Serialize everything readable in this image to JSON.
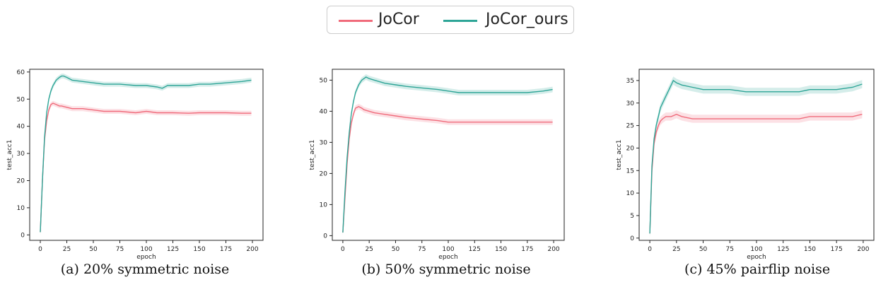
{
  "colors": {
    "JoCor": "#f06b7b",
    "JoCor_ours": "#2ea597"
  },
  "legend": {
    "items": [
      {
        "label": "JoCor"
      },
      {
        "label": "JoCor_ours"
      }
    ]
  },
  "captions": [
    "(a) 20% symmetric noise",
    "(b) 50% symmetric noise",
    "(c) 45% pairflip noise"
  ],
  "chart_data": [
    {
      "type": "line",
      "xlabel": "epoch",
      "ylabel": "test_acc1",
      "xlim": [
        -10,
        210
      ],
      "ylim": [
        -2,
        61
      ],
      "xticks": [
        0,
        25,
        50,
        75,
        100,
        125,
        150,
        175,
        200
      ],
      "yticks": [
        0,
        10,
        20,
        30,
        40,
        50,
        60
      ],
      "grid": false,
      "series": [
        {
          "name": "JoCor",
          "x": [
            0,
            2,
            4,
            6,
            8,
            10,
            12,
            15,
            18,
            20,
            25,
            30,
            40,
            50,
            60,
            75,
            90,
            100,
            110,
            125,
            140,
            150,
            160,
            175,
            190,
            199
          ],
          "y": [
            1,
            20,
            35,
            42,
            46,
            48,
            48.5,
            48,
            47.5,
            47.5,
            47,
            46.5,
            46.5,
            46,
            45.5,
            45.5,
            45,
            45.5,
            45,
            45,
            44.8,
            45,
            45,
            45,
            44.8,
            44.8
          ]
        },
        {
          "name": "JoCor_ours",
          "x": [
            0,
            2,
            4,
            6,
            8,
            10,
            12,
            15,
            18,
            20,
            22,
            25,
            30,
            40,
            50,
            60,
            75,
            90,
            100,
            110,
            115,
            120,
            125,
            140,
            150,
            160,
            175,
            190,
            199
          ],
          "y": [
            1,
            20,
            36,
            45,
            50,
            53,
            55,
            57,
            58,
            58.5,
            58.5,
            58,
            57,
            56.5,
            56,
            55.5,
            55.5,
            55,
            55,
            54.5,
            54,
            55,
            55,
            55,
            55.5,
            55.5,
            56,
            56.5,
            57
          ]
        }
      ]
    },
    {
      "type": "line",
      "xlabel": "epoch",
      "ylabel": "test_acc1",
      "xlim": [
        -10,
        210
      ],
      "ylim": [
        -1.5,
        53.5
      ],
      "xticks": [
        0,
        25,
        50,
        75,
        100,
        125,
        150,
        175,
        200
      ],
      "yticks": [
        0,
        10,
        20,
        30,
        40,
        50
      ],
      "grid": false,
      "series": [
        {
          "name": "JoCor",
          "x": [
            0,
            2,
            4,
            6,
            8,
            10,
            12,
            15,
            18,
            20,
            25,
            30,
            40,
            50,
            60,
            75,
            90,
            100,
            110,
            125,
            140,
            150,
            160,
            175,
            190,
            199
          ],
          "y": [
            1,
            12,
            23,
            31,
            36,
            39,
            41,
            41.5,
            41,
            40.5,
            40,
            39.5,
            39,
            38.5,
            38,
            37.5,
            37,
            36.5,
            36.5,
            36.5,
            36.5,
            36.5,
            36.5,
            36.5,
            36.5,
            36.5
          ]
        },
        {
          "name": "JoCor_ours",
          "x": [
            0,
            2,
            4,
            6,
            8,
            10,
            12,
            15,
            18,
            20,
            22,
            25,
            30,
            40,
            50,
            60,
            75,
            90,
            100,
            110,
            120,
            125,
            140,
            150,
            160,
            175,
            190,
            199
          ],
          "y": [
            1,
            14,
            25,
            33,
            39,
            43,
            46,
            48.5,
            50,
            50.5,
            51,
            50.5,
            50,
            49,
            48.5,
            48,
            47.5,
            47,
            46.5,
            46,
            46,
            46,
            46,
            46,
            46,
            46,
            46.5,
            47
          ]
        }
      ]
    },
    {
      "type": "line",
      "xlabel": "epoch",
      "ylabel": "test_acc1",
      "xlim": [
        -10,
        210
      ],
      "ylim": [
        -0.5,
        37.5
      ],
      "xticks": [
        0,
        25,
        50,
        75,
        100,
        125,
        150,
        175,
        200
      ],
      "yticks": [
        0,
        5,
        10,
        15,
        20,
        25,
        30,
        35
      ],
      "grid": false,
      "series": [
        {
          "name": "JoCor",
          "x": [
            0,
            2,
            4,
            6,
            8,
            10,
            12,
            15,
            18,
            20,
            25,
            30,
            40,
            50,
            60,
            75,
            90,
            100,
            110,
            125,
            140,
            150,
            160,
            175,
            190,
            199
          ],
          "y": [
            1,
            15,
            21,
            23.5,
            25,
            26,
            26.5,
            27,
            27,
            27,
            27.5,
            27,
            26.5,
            26.5,
            26.5,
            26.5,
            26.5,
            26.5,
            26.5,
            26.5,
            26.5,
            27,
            27,
            27,
            27,
            27.5
          ]
        },
        {
          "name": "JoCor_ours",
          "x": [
            0,
            2,
            4,
            6,
            8,
            10,
            12,
            15,
            18,
            20,
            22,
            25,
            30,
            40,
            50,
            60,
            75,
            90,
            100,
            110,
            120,
            125,
            140,
            150,
            160,
            175,
            190,
            199
          ],
          "y": [
            1,
            16,
            22,
            25,
            27,
            29,
            30,
            31.5,
            33,
            34,
            35,
            34.5,
            34,
            33.5,
            33,
            33,
            33,
            32.5,
            32.5,
            32.5,
            32.5,
            32.5,
            32.5,
            33,
            33,
            33,
            33.5,
            34.2
          ]
        }
      ]
    }
  ]
}
